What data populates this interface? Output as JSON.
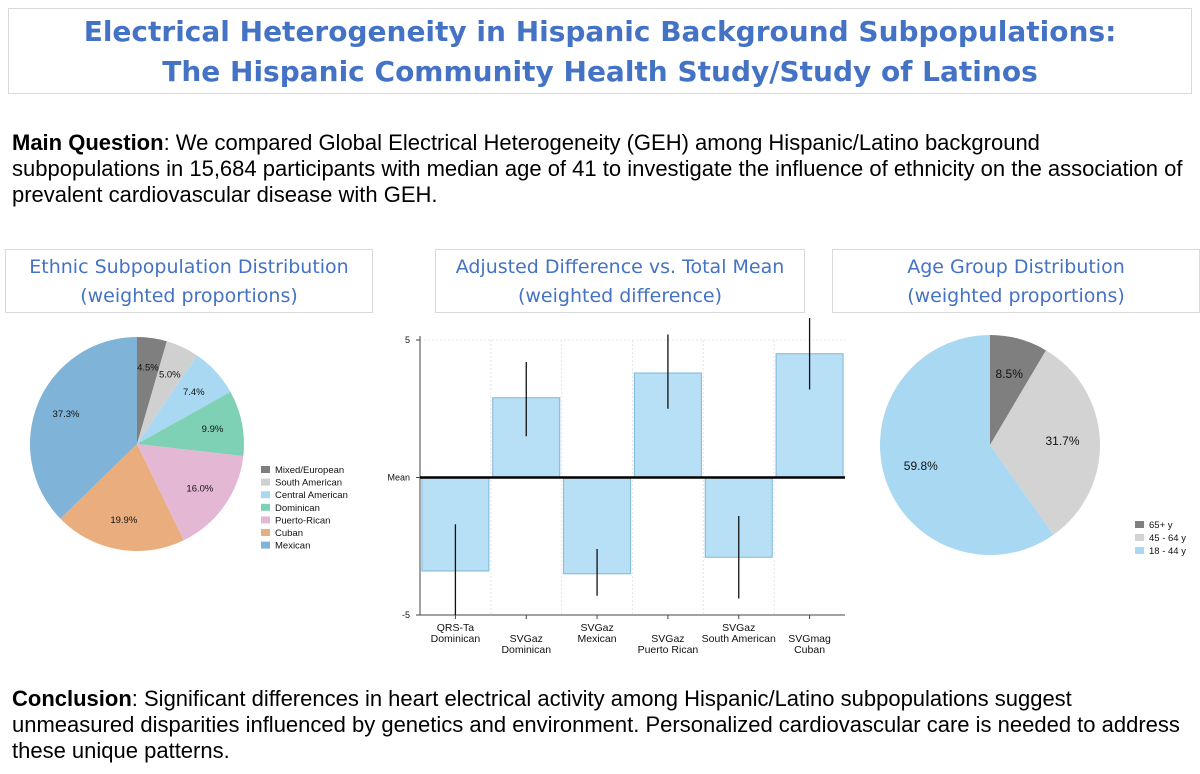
{
  "header": {
    "title_line1": "Electrical Heterogeneity in Hispanic Background Subpopulations:",
    "title_line2": "The Hispanic Community Health Study/Study of Latinos"
  },
  "question": {
    "lead": "Main Question",
    "text": ": We compared Global Electrical Heterogeneity (GEH) among Hispanic/Latino background subpopulations in 15,684 participants with median age of 41 to investigate the influence of ethnicity on the association of prevalent cardiovascular disease with GEH."
  },
  "conclusion": {
    "lead": "Conclusion",
    "text": ": Significant differences in heart electrical activity among Hispanic/Latino subpopulations suggest unmeasured disparities influenced by genetics and environment. Personalized cardiovascular care is needed to address these unique patterns."
  },
  "chart_data": [
    {
      "type": "pie",
      "title": "Ethnic Subpopulation Distribution",
      "subtitle": "(weighted proportions)",
      "legend_position": "right",
      "slices": [
        {
          "label": "Mixed/European",
          "value": 4.5,
          "display": "4.5%",
          "color": "#7f7f7f"
        },
        {
          "label": "South American",
          "value": 5.0,
          "display": "5.0%",
          "color": "#d0d0d0"
        },
        {
          "label": "Central American",
          "value": 7.4,
          "display": "7.4%",
          "color": "#a9d8f2"
        },
        {
          "label": "Dominican",
          "value": 9.9,
          "display": "9.9%",
          "color": "#7fd1b5"
        },
        {
          "label": "Puerto-Rican",
          "value": 16.0,
          "display": "16.0%",
          "color": "#e4b8d4"
        },
        {
          "label": "Cuban",
          "value": 19.9,
          "display": "19.9%",
          "color": "#eaae7e"
        },
        {
          "label": "Mexican",
          "value": 37.3,
          "display": "37.3%",
          "color": "#7fb3d8"
        }
      ]
    },
    {
      "type": "bar",
      "title": "Adjusted Difference vs. Total Mean",
      "subtitle": "(weighted difference)",
      "ylim": [
        -5,
        5
      ],
      "yticks": [
        {
          "value": 5,
          "label": "5"
        },
        {
          "value": 0,
          "label": "Mean"
        },
        {
          "value": -5,
          "label": "-5"
        }
      ],
      "bar_color": "#b7dff5",
      "categories": [
        [
          "QRS-Ta",
          "Dominican"
        ],
        [
          "SVGaz",
          "Dominican"
        ],
        [
          "SVGaz",
          "Mexican"
        ],
        [
          "SVGaz",
          "Puerto Rican"
        ],
        [
          "SVGaz",
          "South American"
        ],
        [
          "SVGmag",
          "Cuban"
        ]
      ],
      "values": [
        -3.4,
        2.9,
        -3.5,
        3.8,
        -2.9,
        4.5
      ],
      "error_low": [
        -5.0,
        1.5,
        -4.3,
        2.5,
        -4.4,
        3.2
      ],
      "error_high": [
        -1.7,
        4.2,
        -2.6,
        5.2,
        -1.4,
        5.8
      ]
    },
    {
      "type": "pie",
      "title": "Age Group Distribution",
      "subtitle": "(weighted proportions)",
      "legend_position": "bottom-right",
      "slices": [
        {
          "label": "65+ y",
          "value": 8.5,
          "display": "8.5%",
          "color": "#7f7f7f"
        },
        {
          "label": "45 - 64 y",
          "value": 31.7,
          "display": "31.7%",
          "color": "#d3d3d3"
        },
        {
          "label": "18 - 44 y",
          "value": 59.8,
          "display": "59.8%",
          "color": "#a9d8f2"
        }
      ]
    }
  ]
}
